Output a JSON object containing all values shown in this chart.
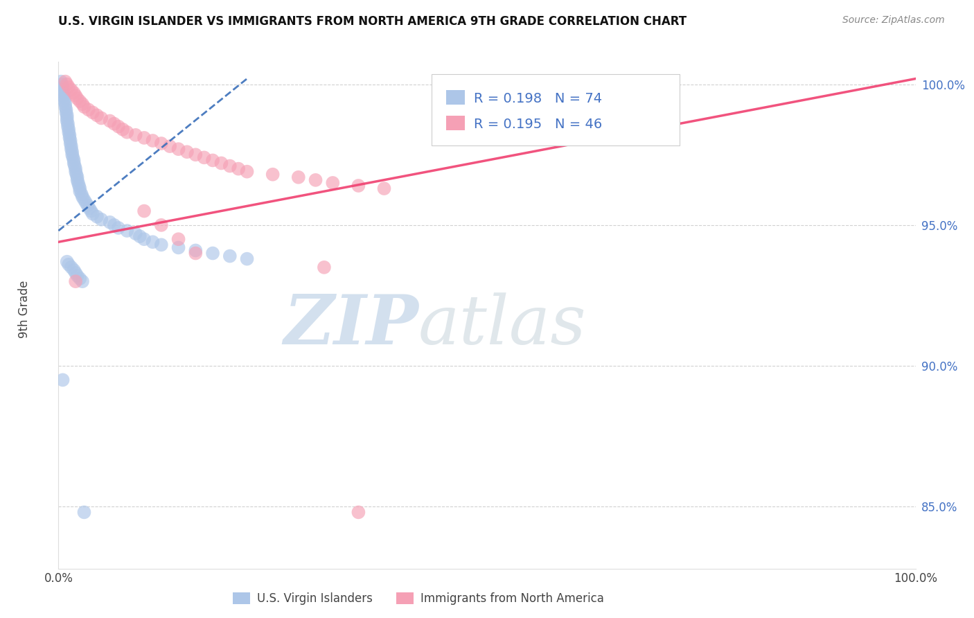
{
  "title": "U.S. VIRGIN ISLANDER VS IMMIGRANTS FROM NORTH AMERICA 9TH GRADE CORRELATION CHART",
  "source": "Source: ZipAtlas.com",
  "ylabel": "9th Grade",
  "r_blue": 0.198,
  "n_blue": 74,
  "r_pink": 0.195,
  "n_pink": 46,
  "legend_label_blue": "U.S. Virgin Islanders",
  "legend_label_pink": "Immigrants from North America",
  "blue_color": "#adc6e8",
  "pink_color": "#f5a0b5",
  "trend_blue_color": "#3a6fba",
  "trend_pink_color": "#f04070",
  "watermark_zip": "ZIP",
  "watermark_atlas": "atlas",
  "watermark_color_zip": "#b8cfe8",
  "watermark_color_atlas": "#d0d8e0",
  "xlim": [
    0.0,
    1.0
  ],
  "ylim": [
    0.828,
    1.008
  ],
  "yticks": [
    0.85,
    0.9,
    0.95,
    1.0
  ],
  "ytick_labels": [
    "85.0%",
    "90.0%",
    "95.0%",
    "100.0%"
  ],
  "xtick_labels": [
    "0.0%",
    "100.0%"
  ],
  "blue_x": [
    0.003,
    0.004,
    0.005,
    0.005,
    0.006,
    0.006,
    0.007,
    0.007,
    0.008,
    0.008,
    0.009,
    0.009,
    0.01,
    0.01,
    0.01,
    0.011,
    0.011,
    0.012,
    0.012,
    0.013,
    0.013,
    0.014,
    0.014,
    0.015,
    0.015,
    0.016,
    0.016,
    0.017,
    0.018,
    0.018,
    0.019,
    0.02,
    0.02,
    0.021,
    0.022,
    0.022,
    0.023,
    0.024,
    0.025,
    0.025,
    0.027,
    0.028,
    0.03,
    0.032,
    0.034,
    0.036,
    0.038,
    0.04,
    0.045,
    0.05,
    0.06,
    0.065,
    0.07,
    0.08,
    0.09,
    0.095,
    0.1,
    0.11,
    0.12,
    0.14,
    0.16,
    0.18,
    0.2,
    0.22,
    0.01,
    0.012,
    0.015,
    0.018,
    0.02,
    0.022,
    0.025,
    0.028,
    0.005,
    0.03
  ],
  "blue_y": [
    1.001,
    1.0,
    0.999,
    0.998,
    0.997,
    0.996,
    0.995,
    0.994,
    0.993,
    0.992,
    0.991,
    0.99,
    0.989,
    0.988,
    0.987,
    0.986,
    0.985,
    0.984,
    0.983,
    0.982,
    0.981,
    0.98,
    0.979,
    0.978,
    0.977,
    0.976,
    0.975,
    0.974,
    0.973,
    0.972,
    0.971,
    0.97,
    0.969,
    0.968,
    0.967,
    0.966,
    0.965,
    0.964,
    0.963,
    0.962,
    0.961,
    0.96,
    0.959,
    0.958,
    0.957,
    0.956,
    0.955,
    0.954,
    0.953,
    0.952,
    0.951,
    0.95,
    0.949,
    0.948,
    0.947,
    0.946,
    0.945,
    0.944,
    0.943,
    0.942,
    0.941,
    0.94,
    0.939,
    0.938,
    0.937,
    0.936,
    0.935,
    0.934,
    0.933,
    0.932,
    0.931,
    0.93,
    0.895,
    0.848
  ],
  "pink_x": [
    0.008,
    0.01,
    0.012,
    0.015,
    0.018,
    0.02,
    0.022,
    0.025,
    0.028,
    0.03,
    0.035,
    0.04,
    0.045,
    0.05,
    0.06,
    0.065,
    0.07,
    0.075,
    0.08,
    0.09,
    0.1,
    0.11,
    0.12,
    0.13,
    0.14,
    0.15,
    0.16,
    0.17,
    0.18,
    0.19,
    0.2,
    0.21,
    0.22,
    0.25,
    0.28,
    0.3,
    0.32,
    0.35,
    0.38,
    0.1,
    0.12,
    0.14,
    0.16,
    0.31,
    0.02,
    0.35
  ],
  "pink_y": [
    1.001,
    1.0,
    0.999,
    0.998,
    0.997,
    0.996,
    0.995,
    0.994,
    0.993,
    0.992,
    0.991,
    0.99,
    0.989,
    0.988,
    0.987,
    0.986,
    0.985,
    0.984,
    0.983,
    0.982,
    0.981,
    0.98,
    0.979,
    0.978,
    0.977,
    0.976,
    0.975,
    0.974,
    0.973,
    0.972,
    0.971,
    0.97,
    0.969,
    0.968,
    0.967,
    0.966,
    0.965,
    0.964,
    0.963,
    0.955,
    0.95,
    0.945,
    0.94,
    0.935,
    0.93,
    0.848
  ],
  "blue_trend_x": [
    0.0,
    0.22
  ],
  "blue_trend_y": [
    0.948,
    1.002
  ],
  "pink_trend_x": [
    0.0,
    1.0
  ],
  "pink_trend_y": [
    0.944,
    1.002
  ]
}
